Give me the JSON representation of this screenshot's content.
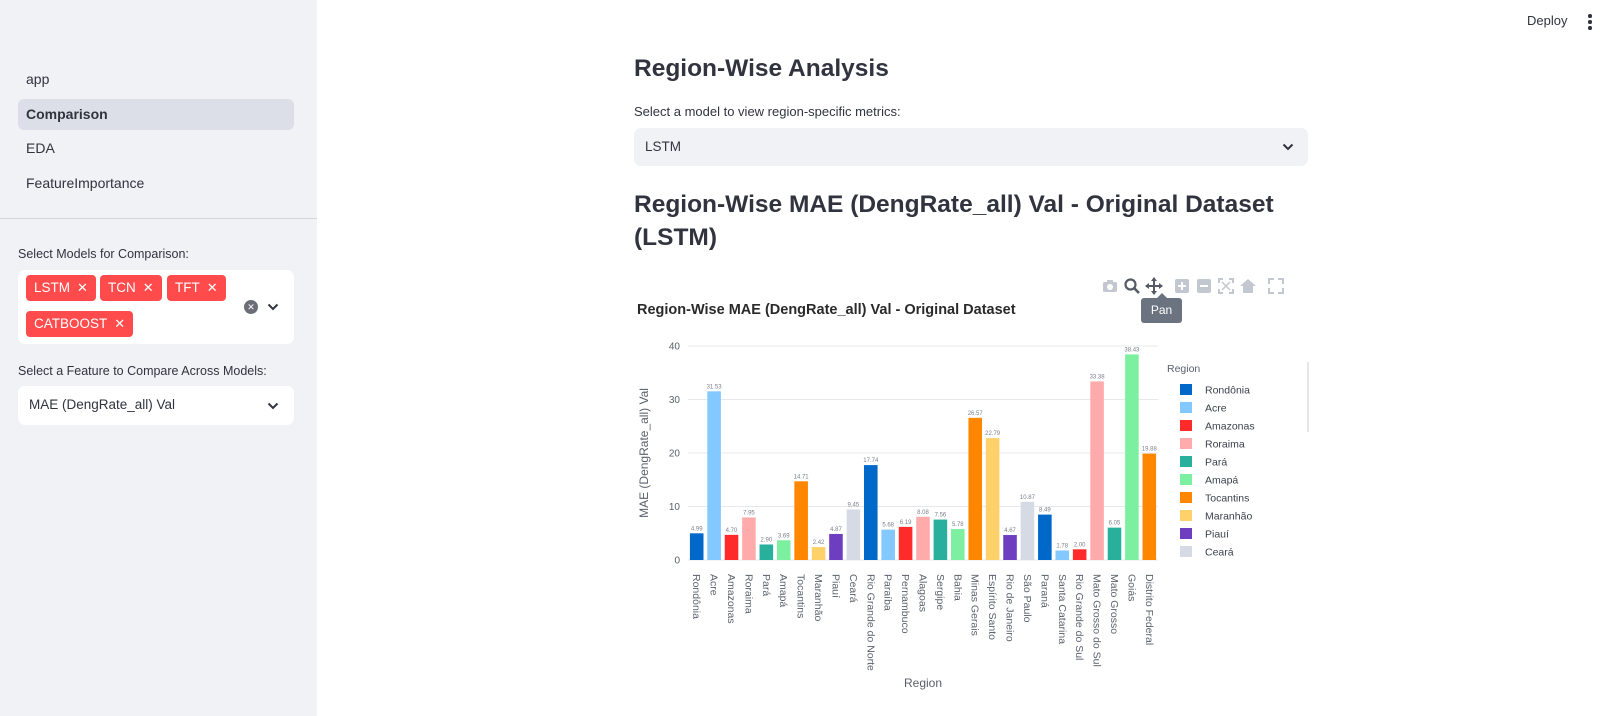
{
  "sidebar": {
    "nav": [
      {
        "label": "app",
        "active": false
      },
      {
        "label": "Comparison",
        "active": true
      },
      {
        "label": "EDA",
        "active": false
      },
      {
        "label": "FeatureImportance",
        "active": false
      }
    ],
    "models_label": "Select Models for Comparison:",
    "models_selected": [
      "LSTM",
      "TCN",
      "TFT",
      "CATBOOST"
    ],
    "feature_label": "Select a Feature to Compare Across Models:",
    "feature_value": "MAE (DengRate_all) Val"
  },
  "header": {
    "deploy_label": "Deploy"
  },
  "main": {
    "heading": "Region-Wise Analysis",
    "select_label": "Select a model to view region-specific metrics:",
    "select_value": "LSTM",
    "chart_heading": "Region-Wise MAE (DengRate_all) Val - Original Dataset (LSTM)",
    "tooltip": "Pan"
  },
  "chart_data": {
    "type": "bar",
    "title": "Region-Wise MAE (DengRate_all) Val - Original Dataset",
    "xlabel": "Region",
    "ylabel": "MAE (DengRate_all) Val",
    "ylim": [
      0,
      40
    ],
    "yticks": [
      0,
      10,
      20,
      30,
      40
    ],
    "legend_title": "Region",
    "legend_placement": "right",
    "categories": [
      "Rondônia",
      "Acre",
      "Amazonas",
      "Roraima",
      "Pará",
      "Amapá",
      "Tocantins",
      "Maranhão",
      "Piauí",
      "Ceará",
      "Rio Grande do Norte",
      "Paraíba",
      "Pernambuco",
      "Alagoas",
      "Sergipe",
      "Bahia",
      "Minas Gerais",
      "Espírito Santo",
      "Rio de Janeiro",
      "São Paulo",
      "Paraná",
      "Santa Catarina",
      "Rio Grande do Sul",
      "Mato Grosso do Sul",
      "Mato Grosso",
      "Goiás",
      "Distrito Federal"
    ],
    "values": [
      4.99,
      31.53,
      4.7,
      7.95,
      2.9,
      3.69,
      14.71,
      2.42,
      4.87,
      9.45,
      17.74,
      5.68,
      6.19,
      8.08,
      7.56,
      5.78,
      26.57,
      22.79,
      4.67,
      10.87,
      8.49,
      1.78,
      2.0,
      33.38,
      6.05,
      38.43,
      19.88
    ],
    "value_labels": [
      "4.99",
      "31.53",
      "4.70",
      "7.95",
      "2.90",
      "3.69",
      "14.71",
      "2.42",
      "4.87",
      "9.45",
      "17.74",
      "5.68",
      "6.19",
      "8.08",
      "7.56",
      "5.78",
      "26.57",
      "22.79",
      "4.67",
      "10.87",
      "8.49",
      "1.78",
      "2.00",
      "33.38",
      "6.05",
      "38.43",
      "19.88"
    ],
    "colors": [
      "#0068c9",
      "#83c9ff",
      "#ff2b2b",
      "#ffabab",
      "#29b09d",
      "#7defa1",
      "#ff8700",
      "#ffd16a",
      "#6d3fc0",
      "#d5dae5",
      "#0068c9",
      "#83c9ff",
      "#ff2b2b",
      "#ffabab",
      "#29b09d",
      "#7defa1",
      "#ff8700",
      "#ffd16a",
      "#6d3fc0",
      "#d5dae5",
      "#0068c9",
      "#83c9ff",
      "#ff2b2b",
      "#ffabab",
      "#29b09d",
      "#7defa1",
      "#ff8700"
    ],
    "legend_visible": [
      "Rondônia",
      "Acre",
      "Amazonas",
      "Roraima",
      "Pará",
      "Amapá",
      "Tocantins",
      "Maranhão",
      "Piauí",
      "Ceará"
    ],
    "grid": true
  }
}
